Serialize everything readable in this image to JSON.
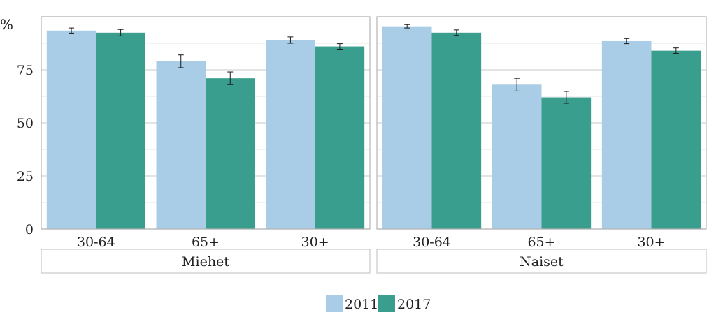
{
  "chart_data": {
    "type": "bar",
    "ylabel": "%",
    "ylim": [
      0,
      100
    ],
    "yticks": [
      0,
      25,
      50,
      75
    ],
    "grid": true,
    "legend_position": "bottom",
    "categories": [
      "30-64",
      "65+",
      "30+"
    ],
    "series": [
      {
        "name": "2011",
        "color": "#a9cde6"
      },
      {
        "name": "2017",
        "color": "#3a9e8f"
      }
    ],
    "facets": [
      {
        "label": "Miehet",
        "values": {
          "2011": [
            93.5,
            79.0,
            89.0
          ],
          "2017": [
            92.5,
            71.0,
            86.0
          ]
        },
        "errors": {
          "2011": [
            1.2,
            3.0,
            1.5
          ],
          "2017": [
            1.5,
            3.0,
            1.3
          ]
        }
      },
      {
        "label": "Naiset",
        "values": {
          "2011": [
            95.5,
            68.0,
            88.5
          ],
          "2017": [
            92.5,
            62.0,
            84.0
          ]
        },
        "errors": {
          "2011": [
            0.8,
            3.0,
            1.2
          ],
          "2017": [
            1.3,
            2.8,
            1.3
          ]
        }
      }
    ]
  }
}
